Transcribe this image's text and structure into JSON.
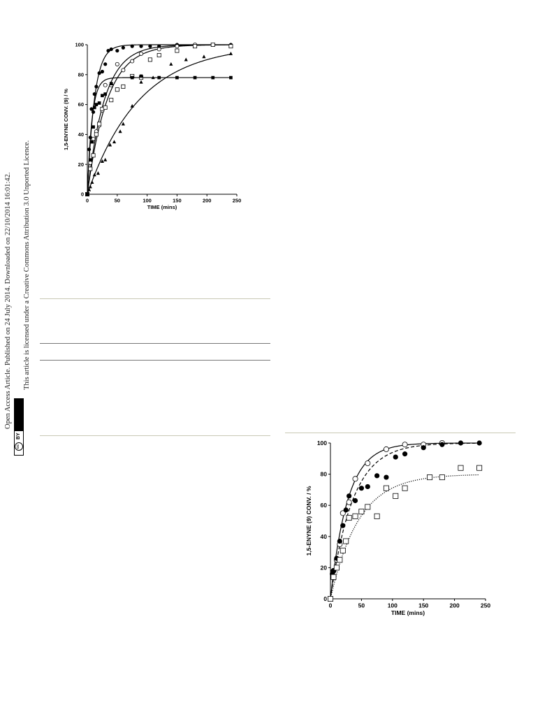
{
  "sidebar": {
    "line1": "Open Access Article. Published on 24 July 2014. Downloaded on 22/10/2014 16:01:42.",
    "line2": "This article is licensed under a Creative Commons Attribution 3.0 Unported Licence.",
    "badge_by": "BY",
    "badge_cc": "cc"
  },
  "chart_data": [
    {
      "type": "scatter",
      "title": "",
      "xlabel": "TIME (mins)",
      "ylabel": "1,5-ENYNE CONV. (9) / %",
      "xlim": [
        0,
        250
      ],
      "ylim": [
        0,
        100
      ],
      "xticks": [
        0,
        50,
        100,
        150,
        200,
        250
      ],
      "yticks": [
        0,
        20,
        40,
        60,
        80,
        100
      ],
      "grid": false,
      "series": [
        {
          "marker": "filled-circle",
          "x": [
            0,
            3,
            5,
            7,
            10,
            12,
            15,
            20,
            25,
            30,
            35,
            40,
            50,
            60,
            75,
            90,
            105,
            120,
            150,
            180,
            210,
            240
          ],
          "y": [
            0,
            30,
            38,
            57,
            55,
            67,
            72,
            81,
            82,
            87,
            96,
            97,
            96,
            98,
            99,
            99,
            99,
            99,
            100,
            100,
            100,
            100
          ],
          "fit": {
            "type": "exp",
            "a": 100,
            "k": 0.085
          }
        },
        {
          "marker": "open-circle",
          "x": [
            0,
            5,
            10,
            15,
            20,
            25,
            30,
            40,
            50,
            60,
            75,
            90,
            120,
            150,
            180,
            210
          ],
          "y": [
            0,
            21,
            37,
            42,
            46,
            56,
            73,
            73,
            87,
            83,
            89,
            94,
            97,
            99,
            100,
            100
          ],
          "fit": {
            "type": "exp",
            "a": 100,
            "k": 0.035
          }
        },
        {
          "marker": "open-square",
          "x": [
            0,
            5,
            10,
            15,
            20,
            25,
            30,
            40,
            50,
            60,
            75,
            90,
            105,
            120,
            150,
            180,
            210,
            240
          ],
          "y": [
            0,
            17,
            26,
            40,
            47,
            57,
            58,
            63,
            70,
            72,
            79,
            78,
            90,
            93,
            96,
            99,
            100,
            99
          ],
          "fit": {
            "type": "exp",
            "a": 100,
            "k": 0.03
          }
        },
        {
          "marker": "filled-triangle",
          "x": [
            0,
            3,
            5,
            8,
            12,
            18,
            25,
            30,
            38,
            45,
            55,
            60,
            75,
            90,
            110,
            140,
            165,
            195,
            240
          ],
          "y": [
            0,
            3,
            5,
            8,
            13,
            14,
            22,
            23,
            33,
            35,
            42,
            47,
            59,
            75,
            78,
            87,
            90,
            92,
            94
          ],
          "fit": {
            "type": "exp",
            "a": 100,
            "k": 0.0115
          }
        },
        {
          "marker": "filled-square",
          "x": [
            0,
            5,
            8,
            10,
            12,
            15,
            20,
            25,
            30,
            40,
            75,
            90,
            120,
            150,
            180,
            210,
            240
          ],
          "y": [
            0,
            23,
            35,
            45,
            58,
            60,
            61,
            66,
            67,
            74,
            78,
            79,
            78,
            78,
            78,
            78,
            78
          ],
          "fit": {
            "type": "exp",
            "a": 78,
            "k": 0.13
          }
        }
      ]
    },
    {
      "type": "scatter",
      "title": "",
      "xlabel": "TIME (mins)",
      "ylabel": "1,5-ENYNE (9) CONV. / %",
      "xlim": [
        0,
        250
      ],
      "ylim": [
        0,
        100
      ],
      "xticks": [
        0,
        50,
        100,
        150,
        200,
        250
      ],
      "yticks": [
        0,
        20,
        40,
        60,
        80,
        100
      ],
      "grid": false,
      "series": [
        {
          "marker": "open-circle",
          "x": [
            0,
            5,
            10,
            15,
            20,
            30,
            40,
            60,
            90,
            120,
            150,
            180
          ],
          "y": [
            0,
            18,
            25,
            35,
            55,
            62,
            77,
            87,
            96,
            99,
            99,
            100
          ],
          "fit": {
            "type": "exp",
            "a": 100,
            "k": 0.036,
            "style": "solid"
          }
        },
        {
          "marker": "filled-circle",
          "x": [
            0,
            3,
            5,
            10,
            15,
            20,
            25,
            30,
            40,
            50,
            60,
            75,
            90,
            105,
            120,
            150,
            180,
            210,
            240
          ],
          "y": [
            0,
            16,
            18,
            26,
            37,
            47,
            57,
            66,
            63,
            71,
            72,
            79,
            78,
            91,
            93,
            97,
            99,
            100,
            100
          ],
          "fit": {
            "type": "exp",
            "a": 100,
            "k": 0.028,
            "style": "dashed"
          }
        },
        {
          "marker": "open-square",
          "x": [
            0,
            5,
            10,
            15,
            20,
            25,
            30,
            40,
            50,
            60,
            75,
            90,
            105,
            120,
            160,
            180,
            210,
            240
          ],
          "y": [
            0,
            14,
            20,
            25,
            31,
            37,
            52,
            53,
            56,
            59,
            53,
            71,
            66,
            71,
            78,
            78,
            84,
            84
          ],
          "fit": {
            "type": "exp",
            "a": 80,
            "k": 0.022,
            "style": "dotted"
          }
        }
      ]
    }
  ]
}
